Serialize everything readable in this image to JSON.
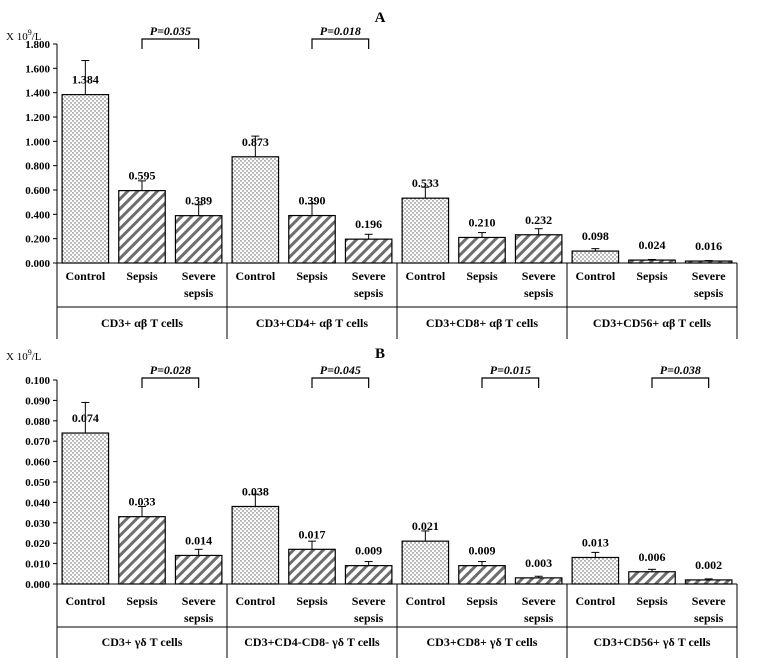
{
  "chart_data": [
    {
      "type": "bar",
      "panel_label": "A",
      "unit_prefix": "X 10",
      "unit_exp": "9",
      "unit_suffix": "/L",
      "ylim": [
        0,
        1.8
      ],
      "yticks": [
        "0.000",
        "0.200",
        "0.400",
        "0.600",
        "0.800",
        "1.000",
        "1.200",
        "1.400",
        "1.600",
        "1.800"
      ],
      "grid": false,
      "legend": "none",
      "groups": [
        {
          "label": "CD3+ αβ T cells",
          "bars": [
            {
              "category": "Control",
              "value": 1.384,
              "label": "1.384",
              "err": 0.28
            },
            {
              "category": "Sepsis",
              "value": 0.595,
              "label": "0.595",
              "err": 0.08
            },
            {
              "category": "Severe sepsis",
              "value": 0.389,
              "label": "0.389",
              "err": 0.09
            }
          ],
          "p_value": "P=0.035"
        },
        {
          "label": "CD3+CD4+ αβ T cells",
          "bars": [
            {
              "category": "Control",
              "value": 0.873,
              "label": "0.873",
              "err": 0.17
            },
            {
              "category": "Sepsis",
              "value": 0.39,
              "label": "0.390",
              "err": 0.1
            },
            {
              "category": "Severe sepsis",
              "value": 0.196,
              "label": "0.196",
              "err": 0.04
            }
          ],
          "p_value": "P=0.018"
        },
        {
          "label": "CD3+CD8+ αβ T cells",
          "bars": [
            {
              "category": "Control",
              "value": 0.533,
              "label": "0.533",
              "err": 0.09
            },
            {
              "category": "Sepsis",
              "value": 0.21,
              "label": "0.210",
              "err": 0.04
            },
            {
              "category": "Severe sepsis",
              "value": 0.232,
              "label": "0.232",
              "err": 0.05
            }
          ],
          "p_value": ""
        },
        {
          "label": "CD3+CD56+ αβ T cells",
          "bars": [
            {
              "category": "Control",
              "value": 0.098,
              "label": "0.098",
              "err": 0.02
            },
            {
              "category": "Sepsis",
              "value": 0.024,
              "label": "0.024",
              "err": 0.005
            },
            {
              "category": "Severe sepsis",
              "value": 0.016,
              "label": "0.016",
              "err": 0.004
            }
          ],
          "p_value": ""
        }
      ]
    },
    {
      "type": "bar",
      "panel_label": "B",
      "unit_prefix": "X 10",
      "unit_exp": "9",
      "unit_suffix": "/L",
      "ylim": [
        0,
        0.1
      ],
      "yticks": [
        "0.000",
        "0.010",
        "0.020",
        "0.030",
        "0.040",
        "0.050",
        "0.060",
        "0.070",
        "0.080",
        "0.090",
        "0.100"
      ],
      "grid": false,
      "legend": "none",
      "groups": [
        {
          "label": "CD3+ γδ T cells",
          "bars": [
            {
              "category": "Control",
              "value": 0.074,
              "label": "0.074",
              "err": 0.015
            },
            {
              "category": "Sepsis",
              "value": 0.033,
              "label": "0.033",
              "err": 0.005
            },
            {
              "category": "Severe sepsis",
              "value": 0.014,
              "label": "0.014",
              "err": 0.003
            }
          ],
          "p_value": "P=0.028"
        },
        {
          "label": "CD3+CD4-CD8- γδ T cells",
          "bars": [
            {
              "category": "Control",
              "value": 0.038,
              "label": "0.038",
              "err": 0.006
            },
            {
              "category": "Sepsis",
              "value": 0.017,
              "label": "0.017",
              "err": 0.004
            },
            {
              "category": "Severe sepsis",
              "value": 0.009,
              "label": "0.009",
              "err": 0.002
            }
          ],
          "p_value": "P=0.045"
        },
        {
          "label": "CD3+CD8+ γδ T cells",
          "bars": [
            {
              "category": "Control",
              "value": 0.021,
              "label": "0.021",
              "err": 0.005
            },
            {
              "category": "Sepsis",
              "value": 0.009,
              "label": "0.009",
              "err": 0.002
            },
            {
              "category": "Severe sepsis",
              "value": 0.003,
              "label": "0.003",
              "err": 0.0008
            }
          ],
          "p_value": "P=0.015"
        },
        {
          "label": "CD3+CD56+ γδ T cells",
          "bars": [
            {
              "category": "Control",
              "value": 0.013,
              "label": "0.013",
              "err": 0.0025
            },
            {
              "category": "Sepsis",
              "value": 0.006,
              "label": "0.006",
              "err": 0.0012
            },
            {
              "category": "Severe sepsis",
              "value": 0.002,
              "label": "0.002",
              "err": 0.0005
            }
          ],
          "p_value": "P=0.038"
        }
      ]
    }
  ]
}
